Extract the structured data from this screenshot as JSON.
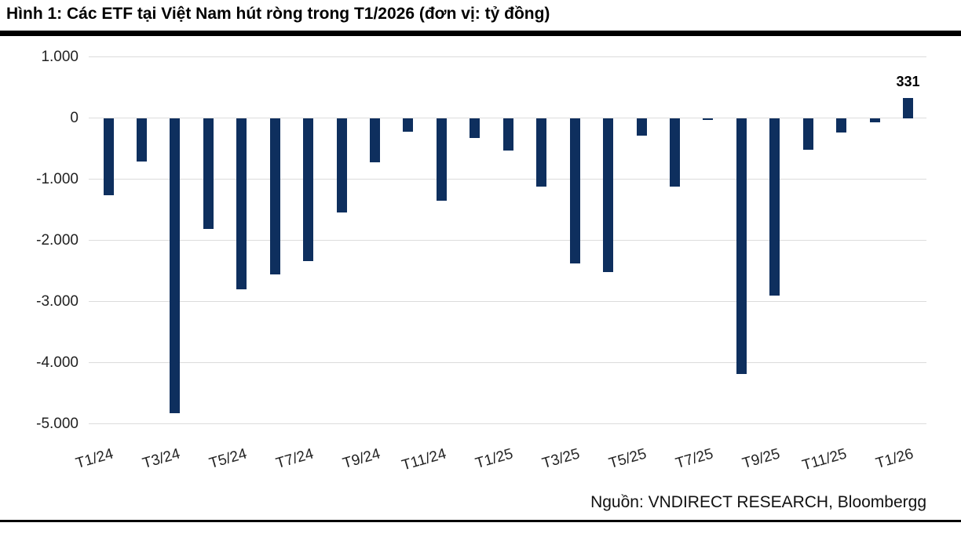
{
  "header": {
    "title": "Hình 1: Các ETF tại Việt Nam hút ròng trong T1/2026 (đơn vị: tỷ đồng)"
  },
  "footer": {
    "source": "Nguồn: VNDIRECT RESEARCH, Bloombergg"
  },
  "colors": {
    "bar": "#0e2f5e",
    "gridline": "#dcdcdc",
    "rule": "#000000",
    "text": "#222222"
  },
  "chart_data": {
    "type": "bar",
    "title": "Hình 1: Các ETF tại Việt Nam hút ròng trong T1/2026 (đơn vị: tỷ đồng)",
    "unit": "tỷ đồng",
    "categories": [
      "T1/24",
      "T2/24",
      "T3/24",
      "T4/24",
      "T5/24",
      "T6/24",
      "T7/24",
      "T8/24",
      "T9/24",
      "T10/24",
      "T11/24",
      "T12/24",
      "T1/25",
      "T2/25",
      "T3/25",
      "T4/25",
      "T5/25",
      "T6/25",
      "T7/25",
      "T8/25",
      "T9/25",
      "T10/25",
      "T11/25",
      "T12/25",
      "T1/26"
    ],
    "values": [
      -1265,
      -710,
      -4830,
      -1815,
      -2805,
      -2555,
      -2340,
      -1545,
      -725,
      -220,
      -1350,
      -320,
      -530,
      -1125,
      -2380,
      -2520,
      -290,
      -1120,
      -30,
      -4180,
      -2905,
      -515,
      -230,
      -70,
      331
    ],
    "x_tick_labels": [
      "T1/24",
      "T3/24",
      "T5/24",
      "T7/24",
      "T9/24",
      "T11/24",
      "T1/25",
      "T3/25",
      "T5/25",
      "T7/25",
      "T9/25",
      "T11/25",
      "T1/26"
    ],
    "y_ticks": [
      {
        "value": 1000,
        "label": "1.000"
      },
      {
        "value": 0,
        "label": "0"
      },
      {
        "value": -1000,
        "label": "-1.000"
      },
      {
        "value": -2000,
        "label": "-2.000"
      },
      {
        "value": -3000,
        "label": "-3.000"
      },
      {
        "value": -4000,
        "label": "-4.000"
      },
      {
        "value": -5000,
        "label": "-5.000"
      }
    ],
    "ylim": [
      -5000,
      1000
    ],
    "grid": "horizontal",
    "legend": "none",
    "annotation": {
      "category": "T1/26",
      "text": "331",
      "value": 331
    }
  }
}
